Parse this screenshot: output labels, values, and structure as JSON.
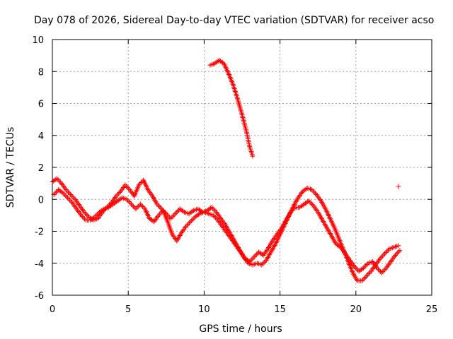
{
  "chart_data": {
    "type": "scatter",
    "title": "Day 078 of 2026, Sidereal Day-to-day VTEC variation (SDTVAR) for receiver acso",
    "xlabel": "GPS time / hours",
    "ylabel": "SDTVAR / TECUs",
    "xlim": [
      0,
      25
    ],
    "ylim": [
      -6,
      10
    ],
    "xticks": [
      0,
      5,
      10,
      15,
      20,
      25
    ],
    "yticks": [
      -6,
      -4,
      -2,
      0,
      2,
      4,
      6,
      8,
      10
    ],
    "xtick_labels": [
      "0",
      "5",
      "10",
      "15",
      "20",
      "25"
    ],
    "ytick_labels": [
      "-6",
      "-4",
      "-2",
      "0",
      "2",
      "4",
      "6",
      "8",
      "10"
    ],
    "grid": true,
    "marker": "+",
    "color": "#ff0000",
    "series": [
      {
        "name": "track-a",
        "points": [
          [
            0.0,
            1.1
          ],
          [
            0.3,
            1.3
          ],
          [
            0.6,
            1.0
          ],
          [
            0.9,
            0.6
          ],
          [
            1.2,
            0.3
          ],
          [
            1.5,
            0.0
          ],
          [
            1.8,
            -0.4
          ],
          [
            2.1,
            -0.8
          ],
          [
            2.4,
            -1.1
          ],
          [
            2.7,
            -1.3
          ],
          [
            3.0,
            -1.2
          ],
          [
            3.3,
            -0.8
          ],
          [
            3.6,
            -0.5
          ],
          [
            3.9,
            -0.2
          ],
          [
            4.2,
            0.2
          ],
          [
            4.5,
            0.5
          ],
          [
            4.8,
            0.9
          ],
          [
            5.1,
            0.6
          ],
          [
            5.4,
            0.2
          ],
          [
            5.7,
            0.9
          ],
          [
            6.0,
            1.2
          ],
          [
            6.3,
            0.6
          ],
          [
            6.6,
            0.2
          ],
          [
            6.9,
            -0.3
          ],
          [
            7.2,
            -0.6
          ],
          [
            7.5,
            -0.9
          ],
          [
            7.8,
            -1.2
          ],
          [
            8.1,
            -0.9
          ],
          [
            8.4,
            -0.6
          ],
          [
            8.7,
            -0.8
          ],
          [
            9.0,
            -0.9
          ],
          [
            9.3,
            -0.7
          ],
          [
            9.6,
            -0.6
          ],
          [
            9.9,
            -0.8
          ],
          [
            10.2,
            -0.7
          ],
          [
            10.5,
            -0.5
          ],
          [
            10.8,
            -0.8
          ],
          [
            11.1,
            -1.2
          ],
          [
            11.4,
            -1.6
          ],
          [
            11.7,
            -2.1
          ],
          [
            12.0,
            -2.6
          ],
          [
            12.3,
            -3.1
          ],
          [
            12.6,
            -3.6
          ],
          [
            12.9,
            -4.0
          ],
          [
            13.2,
            -4.1
          ],
          [
            13.5,
            -4.0
          ],
          [
            13.8,
            -4.1
          ],
          [
            14.1,
            -3.8
          ],
          [
            14.4,
            -3.3
          ],
          [
            14.7,
            -2.8
          ],
          [
            15.0,
            -2.2
          ],
          [
            15.3,
            -1.6
          ],
          [
            15.6,
            -1.0
          ],
          [
            15.9,
            -0.4
          ],
          [
            16.2,
            0.1
          ],
          [
            16.5,
            0.5
          ],
          [
            16.8,
            0.7
          ],
          [
            17.1,
            0.6
          ],
          [
            17.4,
            0.3
          ],
          [
            17.7,
            -0.1
          ],
          [
            18.0,
            -0.6
          ],
          [
            18.3,
            -1.2
          ],
          [
            18.6,
            -1.8
          ],
          [
            18.9,
            -2.5
          ],
          [
            19.2,
            -3.2
          ],
          [
            19.5,
            -3.9
          ],
          [
            19.8,
            -4.6
          ],
          [
            20.1,
            -5.1
          ],
          [
            20.4,
            -5.1
          ],
          [
            20.7,
            -4.8
          ],
          [
            21.0,
            -4.5
          ],
          [
            21.3,
            -4.1
          ],
          [
            21.6,
            -3.7
          ],
          [
            21.9,
            -3.4
          ],
          [
            22.2,
            -3.1
          ],
          [
            22.5,
            -3.0
          ],
          [
            22.8,
            -2.9
          ]
        ]
      },
      {
        "name": "track-b",
        "points": [
          [
            0.1,
            0.3
          ],
          [
            0.4,
            0.6
          ],
          [
            0.7,
            0.4
          ],
          [
            1.0,
            0.1
          ],
          [
            1.3,
            -0.2
          ],
          [
            1.6,
            -0.6
          ],
          [
            1.9,
            -1.0
          ],
          [
            2.2,
            -1.3
          ],
          [
            2.5,
            -1.3
          ],
          [
            2.8,
            -1.1
          ],
          [
            3.1,
            -0.8
          ],
          [
            3.4,
            -0.6
          ],
          [
            3.7,
            -0.5
          ],
          [
            4.0,
            -0.3
          ],
          [
            4.3,
            -0.1
          ],
          [
            4.6,
            0.1
          ],
          [
            4.9,
            0.0
          ],
          [
            5.2,
            -0.3
          ],
          [
            5.5,
            -0.6
          ],
          [
            5.8,
            -0.3
          ],
          [
            6.1,
            -0.6
          ],
          [
            6.4,
            -1.2
          ],
          [
            6.7,
            -1.4
          ],
          [
            7.0,
            -1.0
          ],
          [
            7.3,
            -0.7
          ],
          [
            7.6,
            -1.4
          ],
          [
            7.9,
            -2.2
          ],
          [
            8.2,
            -2.6
          ],
          [
            8.5,
            -2.1
          ],
          [
            8.8,
            -1.7
          ],
          [
            9.1,
            -1.4
          ],
          [
            9.4,
            -1.1
          ],
          [
            9.7,
            -0.9
          ],
          [
            10.0,
            -0.8
          ],
          [
            10.3,
            -0.9
          ],
          [
            10.6,
            -1.0
          ],
          [
            10.9,
            -1.3
          ],
          [
            11.2,
            -1.7
          ],
          [
            11.5,
            -2.1
          ],
          [
            11.8,
            -2.5
          ],
          [
            12.1,
            -2.9
          ],
          [
            12.4,
            -3.3
          ],
          [
            12.7,
            -3.7
          ],
          [
            13.0,
            -3.9
          ],
          [
            13.3,
            -3.6
          ],
          [
            13.6,
            -3.3
          ],
          [
            13.9,
            -3.5
          ],
          [
            14.2,
            -3.1
          ],
          [
            14.5,
            -2.6
          ],
          [
            14.8,
            -2.2
          ],
          [
            15.1,
            -1.8
          ],
          [
            15.4,
            -1.3
          ],
          [
            15.7,
            -0.8
          ],
          [
            16.0,
            -0.5
          ],
          [
            16.3,
            -0.5
          ],
          [
            16.6,
            -0.3
          ],
          [
            16.9,
            -0.1
          ],
          [
            17.2,
            -0.4
          ],
          [
            17.5,
            -0.8
          ],
          [
            17.8,
            -1.3
          ],
          [
            18.1,
            -1.8
          ],
          [
            18.4,
            -2.3
          ],
          [
            18.7,
            -2.8
          ],
          [
            19.0,
            -3.0
          ],
          [
            19.3,
            -3.4
          ],
          [
            19.6,
            -3.8
          ],
          [
            19.9,
            -4.2
          ],
          [
            20.2,
            -4.5
          ],
          [
            20.5,
            -4.3
          ],
          [
            20.8,
            -4.0
          ],
          [
            21.1,
            -3.9
          ],
          [
            21.4,
            -4.3
          ],
          [
            21.7,
            -4.6
          ],
          [
            22.0,
            -4.3
          ],
          [
            22.3,
            -3.9
          ],
          [
            22.6,
            -3.5
          ],
          [
            22.9,
            -3.2
          ]
        ]
      },
      {
        "name": "track-c",
        "points": [
          [
            10.4,
            8.4
          ],
          [
            10.7,
            8.5
          ],
          [
            11.0,
            8.7
          ],
          [
            11.3,
            8.5
          ],
          [
            11.6,
            7.9
          ],
          [
            11.9,
            7.2
          ],
          [
            12.2,
            6.3
          ],
          [
            12.5,
            5.3
          ],
          [
            12.8,
            4.2
          ],
          [
            13.0,
            3.3
          ],
          [
            13.2,
            2.7
          ]
        ]
      },
      {
        "name": "isolated",
        "points": [
          [
            22.8,
            0.8
          ]
        ]
      }
    ]
  }
}
